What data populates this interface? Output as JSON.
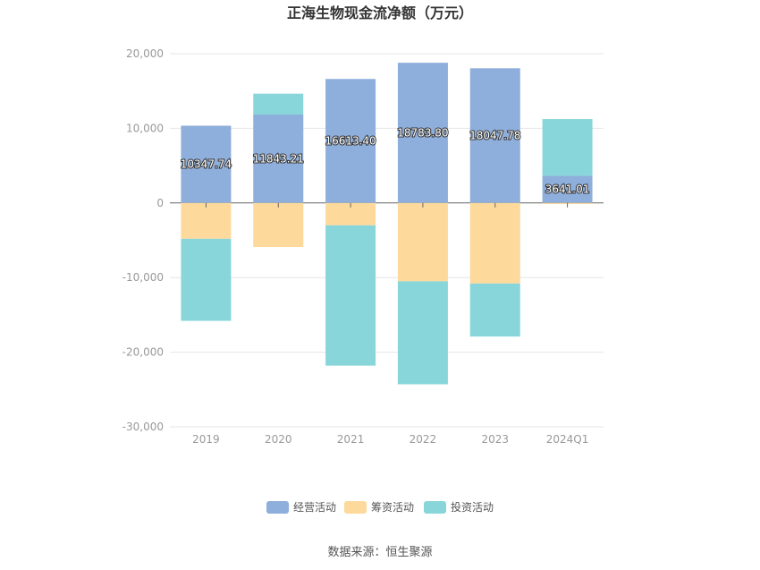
{
  "chart_data": {
    "type": "bar",
    "stacked": true,
    "title": "正海生物现金流净额（万元）",
    "categories": [
      "2019",
      "2020",
      "2021",
      "2022",
      "2023",
      "2024Q1"
    ],
    "series": [
      {
        "name": "经营活动",
        "color": "#8eaedb",
        "values": [
          10347.74,
          11843.21,
          16613.4,
          18783.8,
          18047.78,
          3641.01
        ]
      },
      {
        "name": "筹资活动",
        "color": "#fdd99c",
        "values": [
          -4800,
          -5900,
          -3000,
          -10500,
          -10800,
          -150
        ]
      },
      {
        "name": "投资活动",
        "color": "#88d6da",
        "values": [
          -11000,
          2800,
          -18800,
          -13800,
          -7100,
          7600
        ]
      }
    ],
    "data_labels": [
      "10347.74",
      "11843.21",
      "16613.40",
      "18783.80",
      "18047.78",
      "3641.01"
    ],
    "yticks": [
      "20,000",
      "10,000",
      "0",
      "-10,000",
      "-20,000",
      "-30,000"
    ],
    "ylim": [
      -30000,
      20000
    ],
    "grid": true,
    "legend_position": "bottom"
  },
  "source": "数据来源：恒生聚源"
}
